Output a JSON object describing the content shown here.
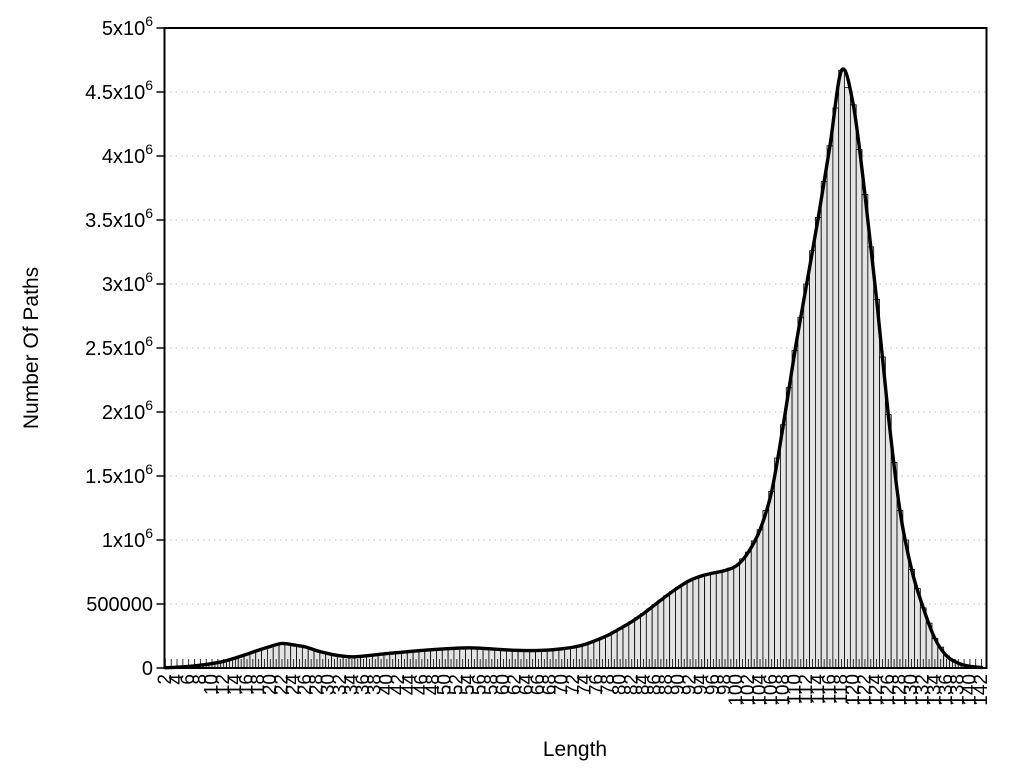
{
  "chart_data": {
    "type": "bar",
    "subtype": "histogram-with-smooth-line",
    "title": "",
    "xlabel": "Length",
    "ylabel": "Number Of Paths",
    "legend": "none",
    "grid": "horizontal-dotted",
    "xlim": [
      1.85,
      142.85
    ],
    "ylim": [
      0,
      5000000
    ],
    "bar_step": 1,
    "label_step": 2,
    "categories": [
      2,
      4,
      6,
      8,
      10,
      12,
      14,
      16,
      18,
      20,
      22,
      24,
      26,
      28,
      30,
      32,
      34,
      36,
      38,
      40,
      42,
      44,
      46,
      48,
      50,
      52,
      54,
      56,
      58,
      60,
      62,
      64,
      66,
      68,
      70,
      72,
      74,
      76,
      78,
      80,
      82,
      84,
      86,
      88,
      90,
      92,
      94,
      96,
      98,
      100,
      102,
      104,
      106,
      108,
      110,
      112,
      114,
      116,
      118,
      120,
      122,
      124,
      126,
      128,
      130,
      132,
      134,
      136,
      138,
      140,
      142
    ],
    "values": [
      2000,
      6000,
      12000,
      22000,
      35000,
      52000,
      78000,
      108000,
      140000,
      168000,
      192000,
      180000,
      165000,
      135000,
      112000,
      95000,
      87000,
      93000,
      103000,
      113000,
      121000,
      129000,
      137000,
      144000,
      150000,
      155000,
      158000,
      155000,
      149000,
      143000,
      138000,
      136000,
      137000,
      141000,
      150000,
      163000,
      185000,
      218000,
      258000,
      308000,
      362000,
      425000,
      495000,
      565000,
      630000,
      685000,
      720000,
      742000,
      762000,
      800000,
      905000,
      1080000,
      1380000,
      1900000,
      2480000,
      3000000,
      3520000,
      4080000,
      4670000,
      4400000,
      3700000,
      2880000,
      1980000,
      1230000,
      770000,
      470000,
      230000,
      95000,
      38000,
      13000,
      4000
    ],
    "ytick_values": [
      0,
      500000,
      1000000,
      1500000,
      2000000,
      2500000,
      3000000,
      3500000,
      4000000,
      4500000,
      5000000
    ],
    "ytick_labels": [
      "0",
      "500000",
      "1x10^6",
      "1.5x10^6",
      "2x10^6",
      "2.5x10^6",
      "3x10^6",
      "3.5x10^6",
      "4x10^6",
      "4.5x10^6",
      "5x10^6"
    ],
    "colors": {
      "background": "#ffffff",
      "bar_fill": "#e4e4e4",
      "bar_stroke": "#000000",
      "line": "#000000",
      "grid": "#bcbcbc",
      "border": "#000000",
      "text": "#000000"
    }
  }
}
